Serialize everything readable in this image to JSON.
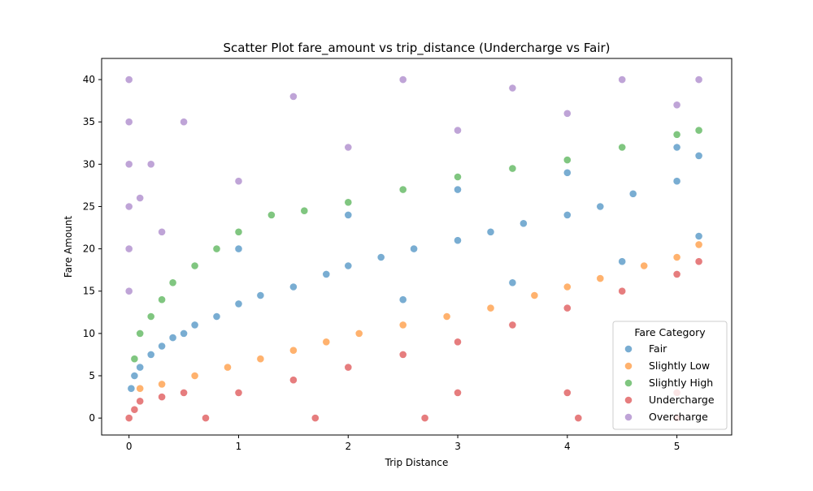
{
  "chart_data": {
    "type": "scatter",
    "title": "Scatter Plot fare_amount vs trip_distance (Undercharge vs Fair)",
    "xlabel": "Trip Distance",
    "ylabel": "Fare Amount",
    "xlim": [
      -0.25,
      5.5
    ],
    "ylim": [
      -2,
      42.5
    ],
    "xticks": [
      0,
      1,
      2,
      3,
      4,
      5
    ],
    "yticks": [
      0,
      5,
      10,
      15,
      20,
      25,
      30,
      35,
      40
    ],
    "grid": false,
    "legend": {
      "title": "Fare Category",
      "placement": "lower-right"
    },
    "series": [
      {
        "name": "Fair",
        "color": "#1f77b4",
        "points": [
          [
            0.02,
            3.5
          ],
          [
            0.05,
            5
          ],
          [
            0.1,
            6
          ],
          [
            0.2,
            7.5
          ],
          [
            0.3,
            8.5
          ],
          [
            0.4,
            9.5
          ],
          [
            0.5,
            10
          ],
          [
            0.6,
            11
          ],
          [
            0.8,
            12
          ],
          [
            1.0,
            13.5
          ],
          [
            1.2,
            14.5
          ],
          [
            1.5,
            15.5
          ],
          [
            1.8,
            17
          ],
          [
            2.0,
            18
          ],
          [
            2.3,
            19
          ],
          [
            2.6,
            20
          ],
          [
            3.0,
            21
          ],
          [
            3.3,
            22
          ],
          [
            3.6,
            23
          ],
          [
            4.0,
            24
          ],
          [
            4.3,
            25
          ],
          [
            4.6,
            26.5
          ],
          [
            5.0,
            28
          ],
          [
            5.2,
            31
          ],
          [
            1.0,
            20
          ],
          [
            2.0,
            24
          ],
          [
            3.0,
            27
          ],
          [
            4.0,
            29
          ],
          [
            5.0,
            32
          ],
          [
            2.5,
            14
          ],
          [
            3.5,
            16
          ],
          [
            4.5,
            18.5
          ],
          [
            5.2,
            21.5
          ]
        ]
      },
      {
        "name": "Slightly Low",
        "color": "#ff7f0e",
        "points": [
          [
            0.1,
            3.5
          ],
          [
            0.3,
            4
          ],
          [
            0.6,
            5
          ],
          [
            0.9,
            6
          ],
          [
            1.2,
            7
          ],
          [
            1.5,
            8
          ],
          [
            1.8,
            9
          ],
          [
            2.1,
            10
          ],
          [
            2.5,
            11
          ],
          [
            2.9,
            12
          ],
          [
            3.3,
            13
          ],
          [
            3.7,
            14.5
          ],
          [
            4.0,
            15.5
          ],
          [
            4.3,
            16.5
          ],
          [
            4.7,
            18
          ],
          [
            5.0,
            19
          ],
          [
            5.2,
            20.5
          ]
        ]
      },
      {
        "name": "Slightly High",
        "color": "#2ca02c",
        "points": [
          [
            0.05,
            7
          ],
          [
            0.1,
            10
          ],
          [
            0.2,
            12
          ],
          [
            0.3,
            14
          ],
          [
            0.4,
            16
          ],
          [
            0.6,
            18
          ],
          [
            0.8,
            20
          ],
          [
            1.0,
            22
          ],
          [
            1.3,
            24
          ],
          [
            1.6,
            24.5
          ],
          [
            2.0,
            25.5
          ],
          [
            2.5,
            27
          ],
          [
            3.0,
            28.5
          ],
          [
            3.5,
            29.5
          ],
          [
            4.0,
            30.5
          ],
          [
            4.5,
            32
          ],
          [
            5.0,
            33.5
          ],
          [
            5.2,
            34
          ]
        ]
      },
      {
        "name": "Undercharge",
        "color": "#d62728",
        "points": [
          [
            0.0,
            0
          ],
          [
            0.05,
            1
          ],
          [
            0.1,
            2
          ],
          [
            0.3,
            2.5
          ],
          [
            0.5,
            3
          ],
          [
            1.0,
            3
          ],
          [
            1.5,
            4.5
          ],
          [
            2.0,
            6
          ],
          [
            2.5,
            7.5
          ],
          [
            3.0,
            9
          ],
          [
            3.5,
            11
          ],
          [
            4.0,
            13
          ],
          [
            4.5,
            15
          ],
          [
            5.0,
            17
          ],
          [
            5.2,
            18.5
          ],
          [
            0.7,
            0
          ],
          [
            1.7,
            0
          ],
          [
            2.7,
            0
          ],
          [
            4.1,
            0
          ],
          [
            5.0,
            0
          ],
          [
            3.0,
            3
          ],
          [
            4.0,
            3
          ],
          [
            5.0,
            3
          ]
        ]
      },
      {
        "name": "Overcharge",
        "color": "#9467bd",
        "points": [
          [
            0.0,
            40
          ],
          [
            0.0,
            35
          ],
          [
            0.0,
            30
          ],
          [
            0.0,
            25
          ],
          [
            0.0,
            20
          ],
          [
            0.0,
            15
          ],
          [
            0.1,
            26
          ],
          [
            0.2,
            30
          ],
          [
            0.3,
            22
          ],
          [
            0.5,
            35
          ],
          [
            1.0,
            28
          ],
          [
            1.5,
            38
          ],
          [
            2.0,
            32
          ],
          [
            2.5,
            40
          ],
          [
            3.0,
            34
          ],
          [
            3.5,
            39
          ],
          [
            4.0,
            36
          ],
          [
            4.5,
            40
          ],
          [
            5.0,
            37
          ],
          [
            5.2,
            40
          ]
        ]
      }
    ]
  }
}
